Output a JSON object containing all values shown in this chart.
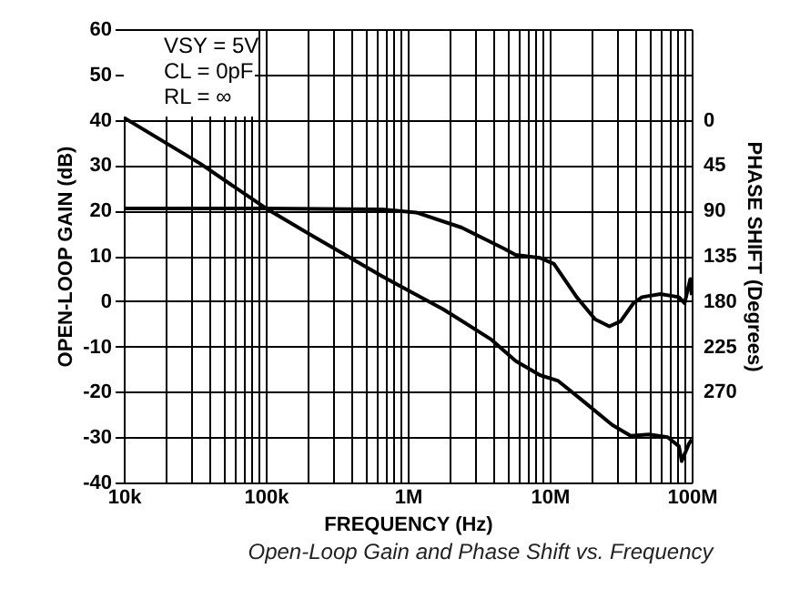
{
  "chart_data": {
    "type": "line",
    "xlabel": "FREQUENCY (Hz)",
    "ylabel": "OPEN-LOOP GAIN (dB)",
    "y2label": "PHASE SHIFT (Degrees)",
    "annotations": [
      "VSY = 5V",
      "CL = 0pF",
      "RL = ∞",
      "Open-Loop Gain and Phase Shift vs. Frequency"
    ],
    "log": "x",
    "grid": true,
    "marker": "none",
    "line_style": "solid",
    "xlim": [
      10000,
      100000000
    ],
    "ylim": [
      -40,
      60
    ],
    "y2lim": [
      360,
      -90
    ],
    "yticks": [
      -40,
      -30,
      -20,
      -10,
      0,
      10,
      20,
      30,
      40,
      50,
      60
    ],
    "y2ticks": [
      0,
      45,
      90,
      135,
      180,
      225,
      270
    ],
    "xticks": [
      {
        "value": 10000,
        "label": "10k"
      },
      {
        "value": 20000,
        "label": null
      },
      {
        "value": 30000,
        "label": null
      },
      {
        "value": 40000,
        "label": null
      },
      {
        "value": 50000,
        "label": null
      },
      {
        "value": 60000,
        "label": null
      },
      {
        "value": 70000,
        "label": null
      },
      {
        "value": 80000,
        "label": null
      },
      {
        "value": 90000,
        "label": null
      },
      {
        "value": 100000,
        "label": "100k"
      },
      {
        "value": 200000,
        "label": null
      },
      {
        "value": 300000,
        "label": null
      },
      {
        "value": 400000,
        "label": null
      },
      {
        "value": 500000,
        "label": null
      },
      {
        "value": 600000,
        "label": null
      },
      {
        "value": 700000,
        "label": null
      },
      {
        "value": 800000,
        "label": null
      },
      {
        "value": 900000,
        "label": null
      },
      {
        "value": 1000000,
        "label": "1M"
      },
      {
        "value": 2000000,
        "label": null
      },
      {
        "value": 3000000,
        "label": null
      },
      {
        "value": 4000000,
        "label": null
      },
      {
        "value": 5000000,
        "label": null
      },
      {
        "value": 6000000,
        "label": null
      },
      {
        "value": 7000000,
        "label": null
      },
      {
        "value": 8000000,
        "label": null
      },
      {
        "value": 9000000,
        "label": null
      },
      {
        "value": 10000000,
        "label": "10M"
      },
      {
        "value": 20000000,
        "label": null
      },
      {
        "value": 30000000,
        "label": null
      },
      {
        "value": 40000000,
        "label": null
      },
      {
        "value": 50000000,
        "label": null
      },
      {
        "value": 60000000,
        "label": null
      },
      {
        "value": 70000000,
        "label": null
      },
      {
        "value": 80000000,
        "label": null
      },
      {
        "value": 90000000,
        "label": null
      },
      {
        "value": 100000000,
        "label": "100M"
      }
    ],
    "series": [
      {
        "color": "#000000",
        "x": [
          10000,
          34674,
          100000,
          223872,
          660693,
          1000000,
          1778279,
          3890451,
          5754399,
          8511380,
          11481536,
          16982437,
          27542287,
          37153523,
          50118723,
          67608298,
          81283052,
          85113804,
          95499259,
          100000000
        ],
        "values": [
          40.5,
          30.3,
          20.5,
          14,
          5.5,
          2.4,
          -1.8,
          -8.5,
          -13.2,
          -16.3,
          -17.6,
          -21.9,
          -27.3,
          -29.7,
          -29.4,
          -30,
          -32,
          -35.3,
          -31.5,
          -30.5
        ]
      },
      {
        "color": "#000000",
        "axis": "y2",
        "x": [
          10000,
          100000,
          660693,
          1148154,
          2398833,
          4786301,
          5754399,
          8511380,
          10715193,
          15488166,
          20892961,
          26302680,
          31622777,
          38904514,
          44668359,
          60255959,
          81283052,
          89125094,
          97723722,
          100000000
        ],
        "values": [
          88,
          88,
          89,
          92,
          107,
          128,
          134,
          137,
          143,
          176,
          198,
          205,
          200,
          182,
          176,
          173,
          176,
          182,
          158,
          174
        ]
      }
    ]
  }
}
